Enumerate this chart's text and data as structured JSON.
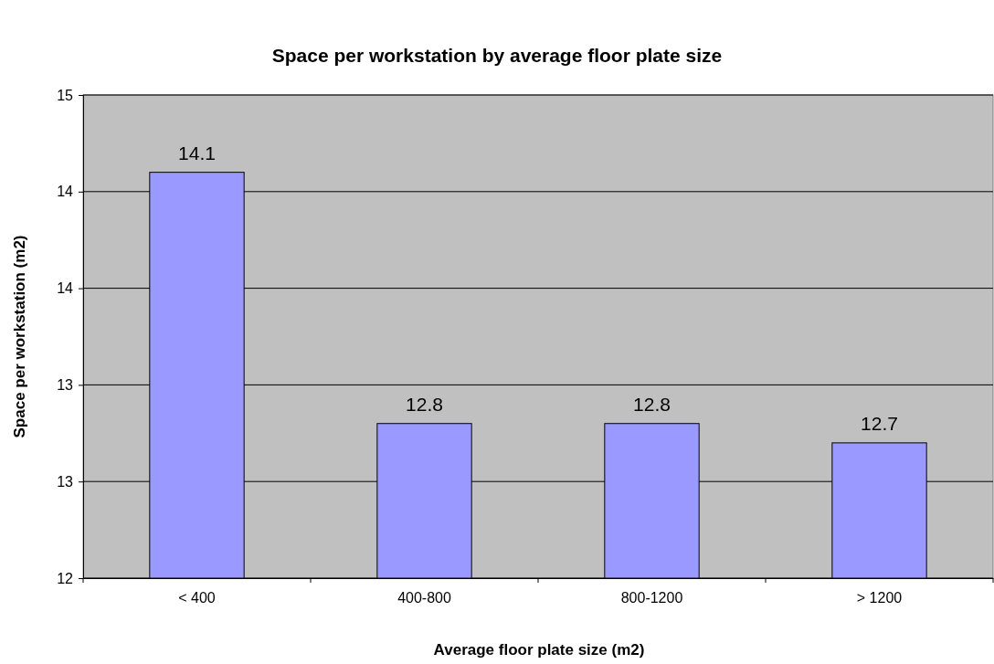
{
  "chart_data": {
    "type": "bar",
    "title": "Space per workstation by average floor plate size",
    "xlabel": "Average floor plate size (m2)",
    "ylabel": "Space per workstation (m2)",
    "categories": [
      "< 400",
      "400-800",
      "800-1200",
      "> 1200"
    ],
    "values": [
      14.1,
      12.8,
      12.8,
      12.7
    ],
    "color": "#9999ff",
    "ylim": [
      12,
      14.5
    ],
    "yticks": [
      12,
      {
        "value": 12.5,
        "label": "13"
      },
      13,
      {
        "value": 13.5,
        "label": "14"
      },
      14,
      {
        "value": 14.5,
        "label": "15"
      }
    ],
    "grid": "y",
    "data_labels": true
  }
}
